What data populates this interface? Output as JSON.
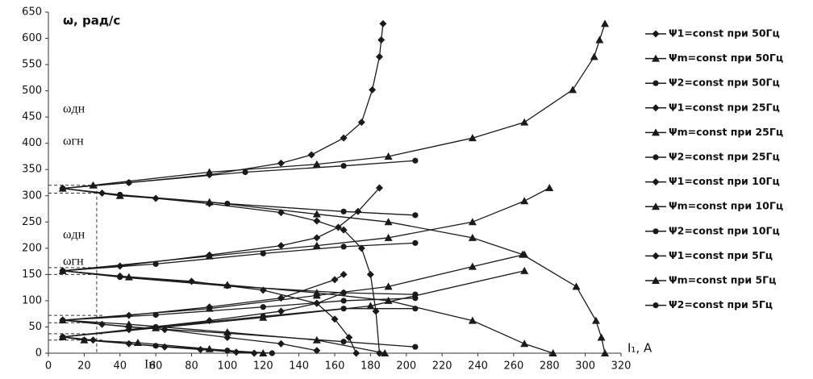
{
  "chart_data": {
    "type": "line",
    "y_label": "ω, рад/с",
    "x_label": "I₁, A",
    "xlim": [
      0,
      320
    ],
    "xticks": [
      0,
      20,
      40,
      60,
      80,
      100,
      120,
      140,
      160,
      180,
      200,
      220,
      240,
      260,
      280,
      300,
      320
    ],
    "ylim": [
      0,
      650
    ],
    "yticks": [
      0,
      50,
      100,
      150,
      200,
      250,
      300,
      350,
      400,
      450,
      500,
      550,
      600,
      650
    ],
    "annotations": [
      "ωгн",
      "ωдн",
      "ωгн",
      "ωдн",
      "Iн"
    ],
    "hlines": [
      320,
      305,
      163,
      150,
      72,
      58,
      37,
      25
    ],
    "vline": 27,
    "series": [
      {
        "name": "Ψ1=const при 50Гц",
        "marker": "diamond",
        "color": "#1a1a1a",
        "x": [
          187,
          186,
          185,
          181,
          175,
          165,
          147,
          130,
          90,
          45,
          8,
          30,
          60,
          90,
          130,
          150,
          165,
          175,
          180,
          183,
          185
        ],
        "values": [
          628,
          597,
          565,
          502,
          440,
          410,
          378,
          362,
          340,
          325,
          314,
          305,
          295,
          285,
          268,
          252,
          235,
          200,
          150,
          80,
          0
        ]
      },
      {
        "name": "Ψm=const при 50Гц",
        "marker": "triangle",
        "color": "#1a1a1a",
        "x": [
          311,
          308,
          305,
          293,
          266,
          237,
          190,
          150,
          90,
          25,
          8,
          40,
          90,
          150,
          190,
          237,
          265,
          295,
          306,
          309,
          311
        ],
        "values": [
          628,
          597,
          565,
          502,
          440,
          410,
          375,
          360,
          345,
          320,
          314,
          300,
          288,
          265,
          250,
          220,
          188,
          127,
          62,
          30,
          0
        ]
      },
      {
        "name": "Ψ2=const при 50Гц",
        "marker": "circle",
        "color": "#1a1a1a",
        "x": [
          205,
          165,
          110,
          45,
          8,
          40,
          100,
          165,
          205
        ],
        "values": [
          367,
          357,
          345,
          325,
          314,
          302,
          285,
          270,
          263
        ]
      },
      {
        "name": "Ψ1=const при 25Гц",
        "marker": "diamond",
        "color": "#1a1a1a",
        "x": [
          185,
          173,
          162,
          150,
          130,
          90,
          40,
          8,
          40,
          80,
          120,
          150,
          160,
          168,
          172
        ],
        "values": [
          315,
          270,
          240,
          220,
          205,
          187,
          166,
          157,
          147,
          137,
          120,
          95,
          65,
          30,
          0
        ]
      },
      {
        "name": "Ψm=const при 25Гц",
        "marker": "triangle",
        "color": "#1a1a1a",
        "x": [
          280,
          266,
          237,
          190,
          150,
          90,
          8,
          45,
          100,
          150,
          190,
          237,
          266,
          282
        ],
        "values": [
          315,
          290,
          250,
          220,
          205,
          185,
          157,
          145,
          130,
          115,
          100,
          62,
          18,
          0
        ]
      },
      {
        "name": "Ψ2=const при 25Гц",
        "marker": "circle",
        "color": "#1a1a1a",
        "x": [
          205,
          165,
          120,
          60,
          8,
          40,
          100,
          165,
          205
        ],
        "values": [
          210,
          203,
          190,
          170,
          157,
          145,
          128,
          115,
          112
        ]
      },
      {
        "name": "Ψ1=const при 10Гц",
        "marker": "diamond",
        "color": "#1a1a1a",
        "x": [
          165,
          160,
          130,
          90,
          45,
          8,
          30,
          65,
          100,
          130,
          150
        ],
        "values": [
          150,
          140,
          105,
          88,
          72,
          63,
          55,
          45,
          30,
          18,
          5
        ]
      },
      {
        "name": "Ψm=const при 10Гц",
        "marker": "triangle",
        "color": "#1a1a1a",
        "x": [
          266,
          237,
          190,
          150,
          90,
          8,
          45,
          100,
          150,
          188
        ],
        "values": [
          188,
          165,
          127,
          110,
          85,
          63,
          55,
          40,
          25,
          0
        ]
      },
      {
        "name": "Ψ2=const при 10Гц",
        "marker": "circle",
        "color": "#1a1a1a",
        "x": [
          205,
          165,
          120,
          60,
          8,
          45,
          100,
          165,
          205
        ],
        "values": [
          105,
          100,
          88,
          73,
          63,
          50,
          38,
          22,
          12
        ]
      },
      {
        "name": "Ψ1=const при 5Гц",
        "marker": "diamond",
        "color": "#1a1a1a",
        "x": [
          165,
          150,
          130,
          90,
          45,
          8,
          25,
          45,
          65,
          85,
          105,
          115
        ],
        "values": [
          115,
          95,
          80,
          62,
          45,
          31,
          25,
          18,
          12,
          7,
          2,
          0
        ]
      },
      {
        "name": "Ψm=const при 5Гц",
        "marker": "triangle",
        "color": "#1a1a1a",
        "x": [
          266,
          180,
          120,
          60,
          8,
          20,
          50,
          90,
          120
        ],
        "values": [
          157,
          90,
          68,
          48,
          31,
          25,
          20,
          8,
          0
        ]
      },
      {
        "name": "Ψ2=const при 5Гц",
        "marker": "circle",
        "color": "#1a1a1a",
        "x": [
          205,
          165,
          120,
          60,
          8,
          20,
          60,
          100,
          125
        ],
        "values": [
          85,
          85,
          70,
          50,
          31,
          25,
          14,
          5,
          0
        ]
      }
    ]
  }
}
